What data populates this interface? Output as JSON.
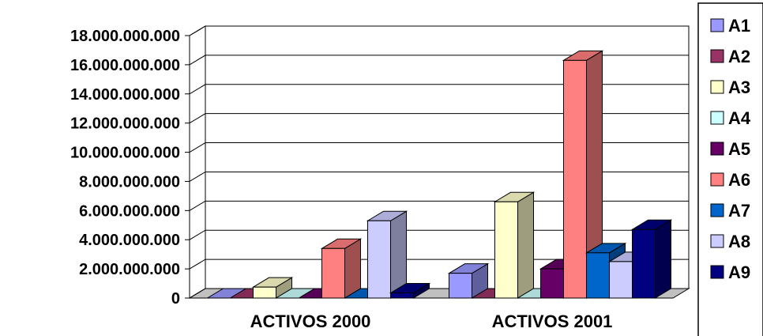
{
  "chart_data": {
    "type": "bar",
    "style": "3d-clustered-column",
    "title": "",
    "xlabel": "",
    "ylabel": "",
    "ylim": [
      0,
      18000000000
    ],
    "yticks": [
      0,
      2000000000,
      4000000000,
      6000000000,
      8000000000,
      10000000000,
      12000000000,
      14000000000,
      16000000000,
      18000000000
    ],
    "ytick_labels": [
      "0",
      "2.000.000.000",
      "4.000.000.000",
      "6.000.000.000",
      "8.000.000.000",
      "10.000.000.000",
      "12.000.000.000",
      "14.000.000.000",
      "16.000.000.000",
      "18.000.000.000"
    ],
    "grid": true,
    "legend_position": "right",
    "categories": [
      "ACTIVOS 2000",
      "ACTIVOS 2001"
    ],
    "series": [
      {
        "name": "A1",
        "color": "#9999ff",
        "values": [
          0,
          1700000000
        ]
      },
      {
        "name": "A2",
        "color": "#993366",
        "values": [
          0,
          0
        ]
      },
      {
        "name": "A3",
        "color": "#ffffcc",
        "values": [
          750000000,
          6600000000
        ]
      },
      {
        "name": "A4",
        "color": "#ccffff",
        "values": [
          0,
          0
        ]
      },
      {
        "name": "A5",
        "color": "#660066",
        "values": [
          0,
          2000000000
        ]
      },
      {
        "name": "A6",
        "color": "#ff8080",
        "values": [
          3400000000,
          16300000000
        ]
      },
      {
        "name": "A7",
        "color": "#0066cc",
        "values": [
          0,
          3100000000
        ]
      },
      {
        "name": "A8",
        "color": "#ccccff",
        "values": [
          5300000000,
          2500000000
        ]
      },
      {
        "name": "A9",
        "color": "#000080",
        "values": [
          350000000,
          4700000000
        ]
      }
    ]
  }
}
